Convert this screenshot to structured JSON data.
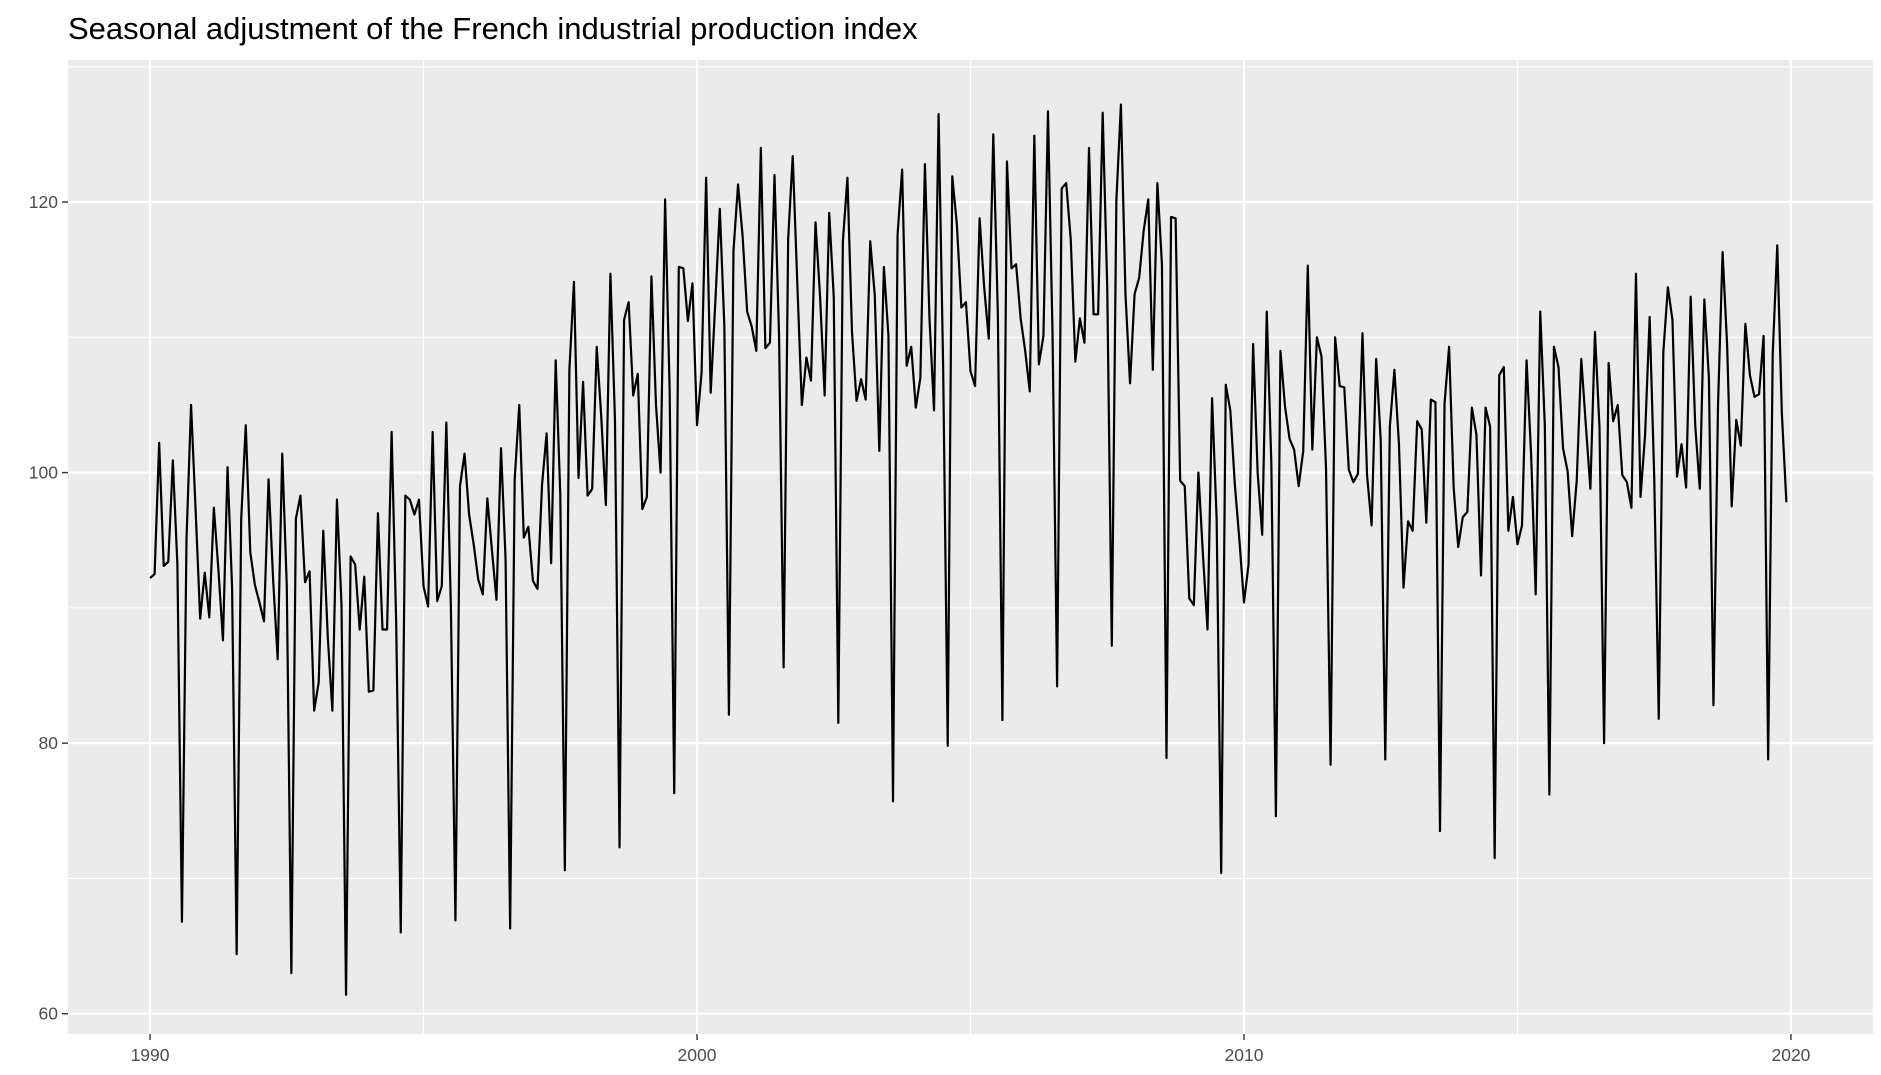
{
  "chart_data": {
    "type": "line",
    "title": "Seasonal adjustment of the French industrial production index",
    "xlabel": "",
    "ylabel": "",
    "xlim": [
      1988.5,
      2021.5
    ],
    "ylim": [
      58.5,
      130.5
    ],
    "x_ticks": [
      1990,
      2000,
      2010,
      2020
    ],
    "x_tick_labels": [
      "1990",
      "2000",
      "2010",
      "2020"
    ],
    "y_ticks": [
      60,
      80,
      100,
      120
    ],
    "y_tick_labels": [
      "60",
      "80",
      "100",
      "120"
    ],
    "grid": true,
    "legend": "none",
    "colors": {
      "panel_background": "#ebebeb",
      "grid_major": "#ffffff",
      "line": "#000000"
    },
    "x_start": 1990.0,
    "x_step": 0.083333,
    "series": [
      {
        "values": [
          92.2,
          92.5,
          102.2,
          93.1,
          93.4,
          100.9,
          93.2,
          66.8,
          95.1,
          105.0,
          97.2,
          89.2,
          92.6,
          89.3,
          97.4,
          92.8,
          87.6,
          100.4,
          91.5,
          64.4,
          96.6,
          103.5,
          94.1,
          91.7,
          90.4,
          89.0,
          99.5,
          92.1,
          86.2,
          101.4,
          91.6,
          63.0,
          96.6,
          98.3,
          91.9,
          92.7,
          82.4,
          84.5,
          95.7,
          87.8,
          82.4,
          98.0,
          90.3,
          61.4,
          93.8,
          93.2,
          88.4,
          92.3,
          83.8,
          83.9,
          97.0,
          88.4,
          88.4,
          103.0,
          88.9,
          66.0,
          98.3,
          98.0,
          96.9,
          98.0,
          91.6,
          90.1,
          103.0,
          90.5,
          91.6,
          103.7,
          90.1,
          66.9,
          99.0,
          101.4,
          96.9,
          94.7,
          92.1,
          91.0,
          98.1,
          94.3,
          90.6,
          101.8,
          93.6,
          66.3,
          99.5,
          105.0,
          95.2,
          96.0,
          92.0,
          91.4,
          99.1,
          102.9,
          93.3,
          108.3,
          98.4,
          70.6,
          107.6,
          114.1,
          99.6,
          106.7,
          98.3,
          98.8,
          109.3,
          104.1,
          97.6,
          114.7,
          103.9,
          72.3,
          111.3,
          112.6,
          105.7,
          107.3,
          97.3,
          98.2,
          114.5,
          105.0,
          100.0,
          120.2,
          106.0,
          76.3,
          115.2,
          115.1,
          111.2,
          114.0,
          103.5,
          107.4,
          121.8,
          105.9,
          112.5,
          119.5,
          110.8,
          82.1,
          116.4,
          121.3,
          117.5,
          111.9,
          110.8,
          109.0,
          124.0,
          109.2,
          109.6,
          122.0,
          110.1,
          85.6,
          117.3,
          123.4,
          114.0,
          105.0,
          108.5,
          106.8,
          118.5,
          113.0,
          105.7,
          119.2,
          113.0,
          81.5,
          117.1,
          121.8,
          110.4,
          105.3,
          106.9,
          105.4,
          117.1,
          113.1,
          101.6,
          115.2,
          110.1,
          75.7,
          117.6,
          122.4,
          107.9,
          109.3,
          104.8,
          107.0,
          122.8,
          111.4,
          104.6,
          126.5,
          107.8,
          79.8,
          121.9,
          118.4,
          112.2,
          112.6,
          107.5,
          106.4,
          118.8,
          113.7,
          109.9,
          125.0,
          111.7,
          81.7,
          123.0,
          115.1,
          115.4,
          111.4,
          109.0,
          106.0,
          124.9,
          108.0,
          110.1,
          126.7,
          110.2,
          84.2,
          121.0,
          121.4,
          117.2,
          108.2,
          111.4,
          109.6,
          124.0,
          111.7,
          111.7,
          126.6,
          113.7,
          87.2,
          120.1,
          127.2,
          113.2,
          106.6,
          113.2,
          114.4,
          117.9,
          120.2,
          107.6,
          121.4,
          115.4,
          78.9,
          118.9,
          118.8,
          99.4,
          99.0,
          90.7,
          90.2,
          100.0,
          93.9,
          88.4,
          105.5,
          96.6,
          70.4,
          106.5,
          104.6,
          99.1,
          95.0,
          90.4,
          93.2,
          109.5,
          100.0,
          95.4,
          111.9,
          100.7,
          74.6,
          109.0,
          104.9,
          102.5,
          101.7,
          99.0,
          101.6,
          115.3,
          101.7,
          110.0,
          108.6,
          100.3,
          78.4,
          110.0,
          106.4,
          106.3,
          100.2,
          99.3,
          99.9,
          110.3,
          99.8,
          96.1,
          108.4,
          102.4,
          78.8,
          103.4,
          107.6,
          102.1,
          91.5,
          96.4,
          95.7,
          103.8,
          103.2,
          96.3,
          105.4,
          105.2,
          73.5,
          105.1,
          109.3,
          98.9,
          94.5,
          96.7,
          97.1,
          104.8,
          102.8,
          92.4,
          104.8,
          103.4,
          71.5,
          107.2,
          107.8,
          95.7,
          98.2,
          94.7,
          96.1,
          108.3,
          101.3,
          91.0,
          111.9,
          103.5,
          76.2,
          109.3,
          107.8,
          101.8,
          100.1,
          95.3,
          99.4,
          108.4,
          103.5,
          98.8,
          110.4,
          103.3,
          80.0,
          108.1,
          103.8,
          105.0,
          99.8,
          99.3,
          97.4,
          114.7,
          98.2,
          102.8,
          111.5,
          99.7,
          81.8,
          108.9,
          113.7,
          111.3,
          99.7,
          102.1,
          98.9,
          113.0,
          103.5,
          98.8,
          112.8,
          107.0,
          82.8,
          105.0,
          116.3,
          109.4,
          97.5,
          103.9,
          102.0,
          111.0,
          107.2,
          105.6,
          105.8,
          110.1,
          78.8,
          108.8,
          116.8,
          104.4,
          97.8
        ]
      }
    ]
  }
}
